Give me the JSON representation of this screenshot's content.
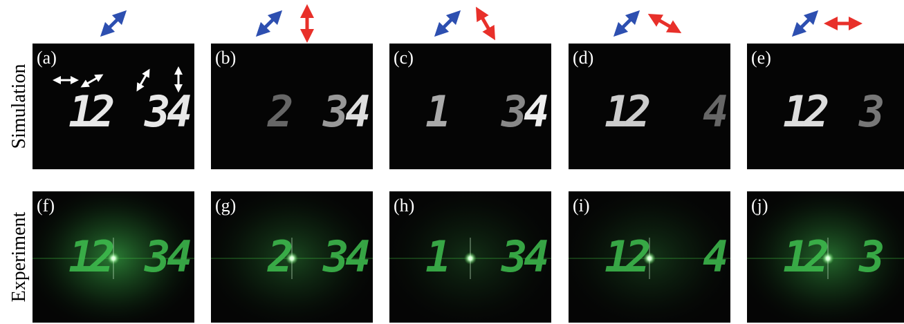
{
  "row_labels": [
    "Simulation",
    "Experiment"
  ],
  "panels": [
    [
      {
        "label": "(a)",
        "digits": [
          "1",
          "2",
          "3",
          "4"
        ]
      },
      {
        "label": "(b)",
        "digits": [
          null,
          "2",
          "3",
          "4"
        ]
      },
      {
        "label": "(c)",
        "digits": [
          "1",
          null,
          "3",
          "4"
        ]
      },
      {
        "label": "(d)",
        "digits": [
          "1",
          "2",
          null,
          "4"
        ]
      },
      {
        "label": "(e)",
        "digits": [
          "1",
          "2",
          "3",
          null
        ]
      }
    ],
    [
      {
        "label": "(f)",
        "digits": [
          "1",
          "2",
          "3",
          "4"
        ]
      },
      {
        "label": "(g)",
        "digits": [
          null,
          "2",
          "3",
          "4"
        ]
      },
      {
        "label": "(h)",
        "digits": [
          "1",
          null,
          "3",
          "4"
        ]
      },
      {
        "label": "(i)",
        "digits": [
          "1",
          "2",
          null,
          "4"
        ]
      },
      {
        "label": "(j)",
        "digits": [
          "1",
          "2",
          "3",
          null
        ]
      }
    ]
  ]
}
